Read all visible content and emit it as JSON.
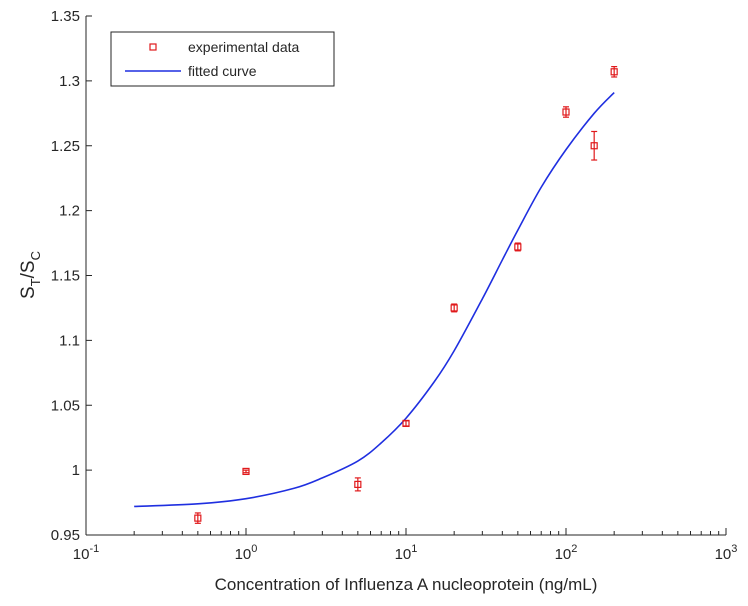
{
  "chart_data": {
    "type": "scatter",
    "title": "",
    "xlabel": "Concentration of Influenza A nucleoprotein (ng/mL)",
    "ylabel": {
      "base": "S",
      "sub1": "T",
      "sep": "/S",
      "sub2": "C"
    },
    "xscale": "log",
    "xlim": [
      0.1,
      1000
    ],
    "ylim": [
      0.95,
      1.35
    ],
    "xticks": [
      {
        "value": 0.1,
        "base": "10",
        "exp": "-1"
      },
      {
        "value": 1,
        "base": "10",
        "exp": "0"
      },
      {
        "value": 10,
        "base": "10",
        "exp": "1"
      },
      {
        "value": 100,
        "base": "10",
        "exp": "2"
      },
      {
        "value": 1000,
        "base": "10",
        "exp": "3"
      }
    ],
    "yticks": [
      {
        "value": 0.95,
        "label": "0.95"
      },
      {
        "value": 1.0,
        "label": "1"
      },
      {
        "value": 1.05,
        "label": "1.05"
      },
      {
        "value": 1.1,
        "label": "1.1"
      },
      {
        "value": 1.15,
        "label": "1.15"
      },
      {
        "value": 1.2,
        "label": "1.2"
      },
      {
        "value": 1.25,
        "label": "1.25"
      },
      {
        "value": 1.3,
        "label": "1.3"
      },
      {
        "value": 1.35,
        "label": "1.35"
      }
    ],
    "series": [
      {
        "name": "experimental data",
        "kind": "scatter",
        "color": "#e0191b",
        "marker": "square",
        "points": [
          {
            "x": 0.5,
            "y": 0.963,
            "err": 0.004
          },
          {
            "x": 1,
            "y": 0.999,
            "err": 0.001
          },
          {
            "x": 5,
            "y": 0.989,
            "err": 0.005
          },
          {
            "x": 10,
            "y": 1.036,
            "err": 0.002
          },
          {
            "x": 20,
            "y": 1.125,
            "err": 0.003
          },
          {
            "x": 50,
            "y": 1.172,
            "err": 0.003
          },
          {
            "x": 100,
            "y": 1.276,
            "err": 0.004
          },
          {
            "x": 150,
            "y": 1.25,
            "err": 0.011
          },
          {
            "x": 200,
            "y": 1.307,
            "err": 0.004
          }
        ]
      },
      {
        "name": "fitted curve",
        "kind": "line",
        "color": "#1f2fe0",
        "points": [
          {
            "x": 0.2,
            "y": 0.972
          },
          {
            "x": 0.5,
            "y": 0.974
          },
          {
            "x": 1,
            "y": 0.978
          },
          {
            "x": 2,
            "y": 0.986
          },
          {
            "x": 3,
            "y": 0.994
          },
          {
            "x": 5,
            "y": 1.007
          },
          {
            "x": 7,
            "y": 1.021
          },
          {
            "x": 10,
            "y": 1.04
          },
          {
            "x": 15,
            "y": 1.068
          },
          {
            "x": 20,
            "y": 1.092
          },
          {
            "x": 30,
            "y": 1.132
          },
          {
            "x": 40,
            "y": 1.162
          },
          {
            "x": 50,
            "y": 1.185
          },
          {
            "x": 70,
            "y": 1.218
          },
          {
            "x": 100,
            "y": 1.247
          },
          {
            "x": 150,
            "y": 1.275
          },
          {
            "x": 200,
            "y": 1.291
          }
        ]
      }
    ],
    "legend": {
      "position": "top-left"
    },
    "grid": false
  }
}
